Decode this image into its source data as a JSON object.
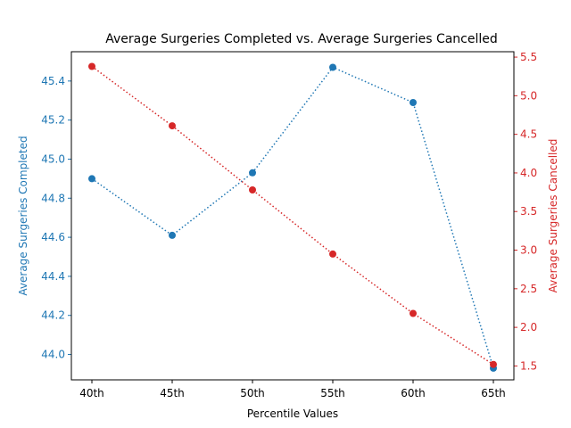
{
  "chart_data": {
    "type": "line",
    "title": "Average Surgeries Completed vs. Average Surgeries Cancelled",
    "xlabel": "Percentile Values",
    "categories": [
      "40th",
      "45th",
      "50th",
      "55th",
      "60th",
      "65th"
    ],
    "grid": false,
    "colors": {
      "left": "#1f77b4",
      "right": "#d62728"
    },
    "left_axis": {
      "label": "Average Surgeries Completed",
      "ylim": [
        43.87,
        45.55
      ],
      "ticks": [
        "44.0",
        "44.2",
        "44.4",
        "44.6",
        "44.8",
        "45.0",
        "45.2",
        "45.4"
      ]
    },
    "right_axis": {
      "label": "Average Surgeries Cancelled",
      "ylim": [
        1.32,
        5.57
      ],
      "ticks": [
        "1.5",
        "2.0",
        "2.5",
        "3.0",
        "3.5",
        "4.0",
        "4.5",
        "5.0",
        "5.5"
      ]
    },
    "series": [
      {
        "name": "Average Surgeries Completed",
        "axis": "left",
        "values": [
          44.9,
          44.61,
          44.93,
          45.47,
          45.29,
          43.93
        ]
      },
      {
        "name": "Average Surgeries Cancelled",
        "axis": "right",
        "values": [
          5.38,
          4.61,
          3.78,
          2.95,
          2.18,
          1.52
        ]
      }
    ]
  }
}
